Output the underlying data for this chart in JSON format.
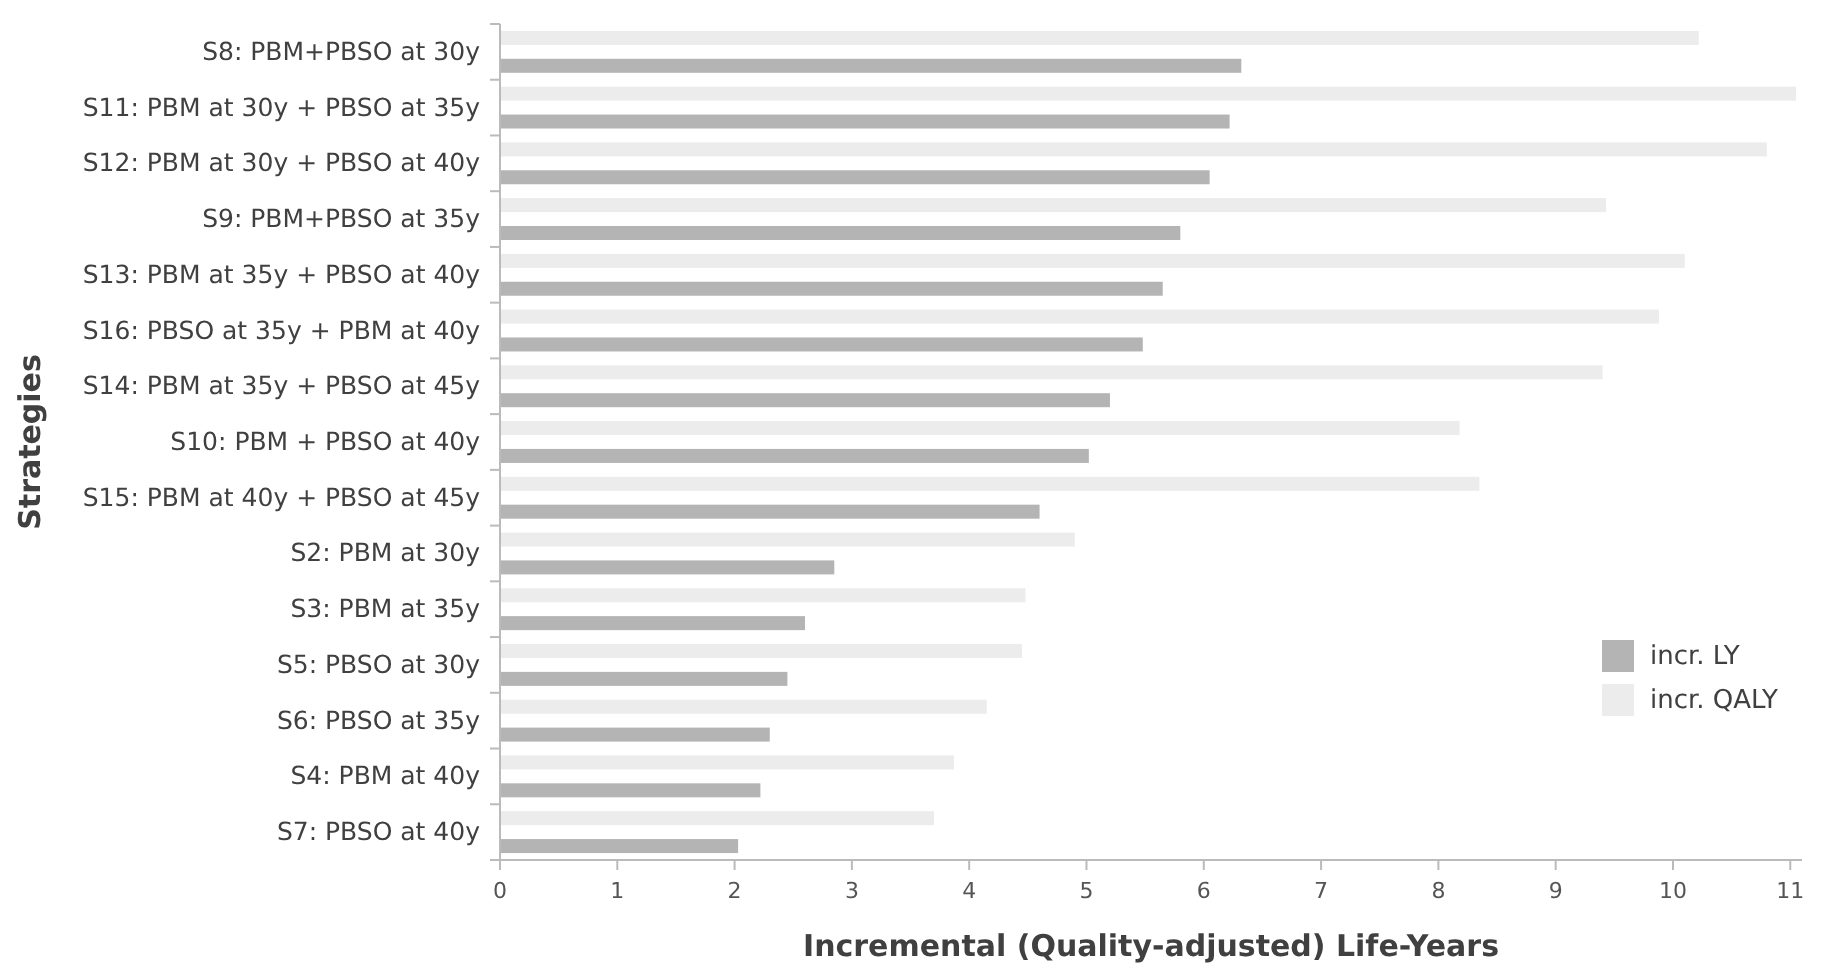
{
  "chart_data": {
    "type": "bar",
    "orientation": "horizontal",
    "xlabel": "Incremental (Quality-adjusted) Life-Years",
    "ylabel": "Strategies",
    "categories": [
      "S8: PBM+PBSO at 30y",
      "S11: PBM at 30y + PBSO at 35y",
      "S12: PBM at 30y + PBSO at 40y",
      "S9: PBM+PBSO at 35y",
      "S13: PBM at 35y + PBSO at 40y",
      "S16: PBSO at 35y + PBM at 40y",
      "S14: PBM at 35y + PBSO at 45y",
      "S10: PBM + PBSO at 40y",
      "S15: PBM at 40y + PBSO at 45y",
      "S2: PBM at 30y",
      "S3: PBM at 35y",
      "S5: PBSO at 30y",
      "S6: PBSO at 35y",
      "S4: PBM at 40y",
      "S7: PBSO at 40y"
    ],
    "series": [
      {
        "name": "incr. LY",
        "color": "#b4b4b4",
        "values": [
          6.32,
          6.22,
          6.05,
          5.8,
          5.65,
          5.48,
          5.2,
          5.02,
          4.6,
          2.85,
          2.6,
          2.45,
          2.3,
          2.22,
          2.03
        ]
      },
      {
        "name": "incr. QALY",
        "color": "#ececec",
        "values": [
          10.22,
          11.05,
          10.8,
          9.43,
          10.1,
          9.88,
          9.4,
          8.18,
          8.35,
          4.9,
          4.48,
          4.45,
          4.15,
          3.87,
          3.7
        ]
      }
    ],
    "xlim": [
      0,
      11.1
    ],
    "xticks": [
      0,
      1,
      2,
      3,
      4,
      5,
      6,
      7,
      8,
      9,
      10,
      11
    ],
    "grid": false,
    "legend": "bottom right"
  }
}
